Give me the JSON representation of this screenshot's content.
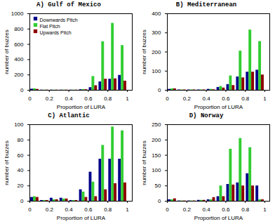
{
  "chart_data": [
    {
      "type": "bar",
      "title": "A) Gulf of Mexico",
      "xlabel": "Proportion of LURA",
      "ylabel": "number of buzzes",
      "bins": [
        0.0,
        0.1,
        0.2,
        0.3,
        0.4,
        0.5,
        0.6,
        0.7,
        0.8,
        0.9,
        1.0
      ],
      "series": [
        {
          "name": "Downwards Pitch",
          "color": "#00008B",
          "values": [
            15,
            3,
            3,
            3,
            3,
            8,
            35,
            110,
            145,
            195
          ]
        },
        {
          "name": "Flat Pitch",
          "color": "#32CD32",
          "values": [
            20,
            3,
            3,
            3,
            3,
            10,
            180,
            635,
            875,
            585
          ]
        },
        {
          "name": "Upwards Pitch",
          "color": "#8B0000",
          "values": [
            12,
            3,
            3,
            3,
            3,
            8,
            60,
            145,
            150,
            120
          ]
        }
      ],
      "xlim": [
        0,
        1.05
      ],
      "xticks": [
        0,
        0.2,
        0.4,
        0.6,
        0.8,
        1
      ],
      "ylim": [
        0,
        1000
      ],
      "yticks": [
        0,
        200,
        400,
        600,
        800,
        1000
      ],
      "legend": "upper left"
    },
    {
      "type": "bar",
      "title": "B) Mediterranean",
      "xlabel": "Proportion of LURA",
      "ylabel": "number of buzzes",
      "bins": [
        0.0,
        0.1,
        0.2,
        0.3,
        0.4,
        0.5,
        0.6,
        0.7,
        0.8,
        0.9,
        1.0
      ],
      "series": [
        {
          "name": "Downwards Pitch",
          "color": "#00008B",
          "values": [
            5,
            2,
            2,
            2,
            5,
            15,
            30,
            70,
            95,
            105
          ]
        },
        {
          "name": "Flat Pitch",
          "color": "#32CD32",
          "values": [
            8,
            2,
            2,
            2,
            5,
            20,
            75,
            205,
            315,
            255
          ]
        },
        {
          "name": "Upwards Pitch",
          "color": "#8B0000",
          "values": [
            8,
            2,
            2,
            2,
            3,
            12,
            25,
            65,
            95,
            80
          ]
        }
      ],
      "xlim": [
        0,
        1.05
      ],
      "xticks": [
        0,
        0.2,
        0.4,
        0.6,
        0.8,
        1
      ],
      "ylim": [
        0,
        400
      ],
      "yticks": [
        0,
        100,
        200,
        300,
        400
      ]
    },
    {
      "type": "bar",
      "title": "C) Atlantic",
      "xlabel": "Proportion of LURA",
      "ylabel": "number of buzzes",
      "bins": [
        0.0,
        0.1,
        0.2,
        0.3,
        0.4,
        0.5,
        0.6,
        0.7,
        0.8,
        0.9,
        1.0
      ],
      "series": [
        {
          "name": "Downwards Pitch",
          "color": "#00008B",
          "values": [
            5,
            1,
            4,
            4,
            1,
            15,
            38,
            55,
            55,
            55
          ]
        },
        {
          "name": "Flat Pitch",
          "color": "#32CD32",
          "values": [
            6,
            1,
            2,
            3,
            1,
            12,
            25,
            73,
            97,
            92
          ]
        },
        {
          "name": "Upwards Pitch",
          "color": "#8B0000",
          "values": [
            5,
            1,
            2,
            3,
            1,
            5,
            6,
            15,
            23,
            24
          ]
        }
      ],
      "xlim": [
        0,
        1.05
      ],
      "xticks": [
        0,
        0.2,
        0.4,
        0.6,
        0.8,
        1
      ],
      "ylim": [
        0,
        100
      ],
      "yticks": [
        0,
        20,
        40,
        60,
        80,
        100
      ]
    },
    {
      "type": "bar",
      "title": "D) Norway",
      "xlabel": "Proportion of LURA",
      "ylabel": "number of buzzes",
      "bins": [
        0.0,
        0.1,
        0.2,
        0.3,
        0.4,
        0.5,
        0.6,
        0.7,
        0.8,
        0.9,
        1.0
      ],
      "series": [
        {
          "name": "Downwards Pitch",
          "color": "#00008B",
          "values": [
            5,
            1,
            1,
            3,
            5,
            15,
            55,
            60,
            90,
            50
          ]
        },
        {
          "name": "Flat Pitch",
          "color": "#32CD32",
          "values": [
            5,
            1,
            1,
            3,
            5,
            50,
            170,
            205,
            175,
            5
          ]
        },
        {
          "name": "Upwards Pitch",
          "color": "#8B0000",
          "values": [
            8,
            1,
            1,
            3,
            12,
            15,
            53,
            50,
            50,
            5
          ]
        }
      ],
      "xlim": [
        0,
        1.05
      ],
      "xticks": [
        0,
        0.2,
        0.4,
        0.6,
        0.8,
        1
      ],
      "ylim": [
        0,
        250
      ],
      "yticks": [
        0,
        50,
        100,
        150,
        200,
        250
      ]
    }
  ]
}
